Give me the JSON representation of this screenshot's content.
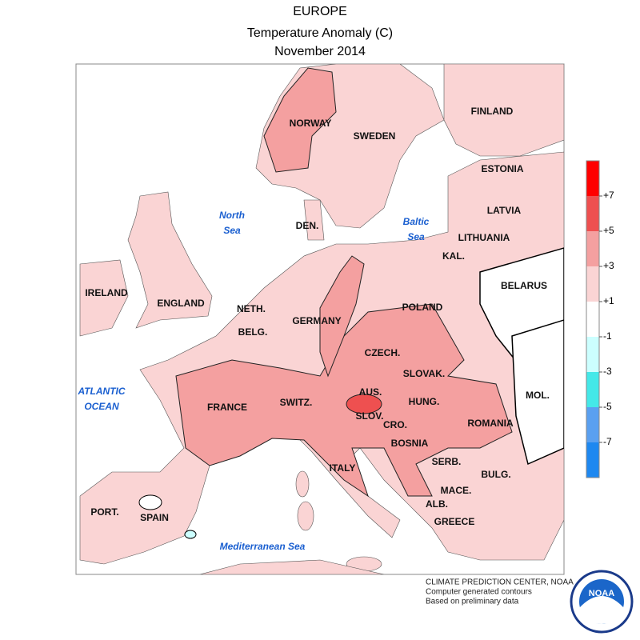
{
  "header": {
    "title": "EUROPE",
    "subtitle": "Temperature Anomaly (C)",
    "date": "November 2014"
  },
  "countries": [
    "NORWAY",
    "SWEDEN",
    "FINLAND",
    "ESTONIA",
    "LATVIA",
    "LITHUANIA",
    "KAL.",
    "DEN.",
    "BELARUS",
    "IRELAND",
    "ENGLAND",
    "NETH.",
    "POLAND",
    "GERMANY",
    "BELG.",
    "CZECH.",
    "SLOVAK.",
    "MOL.",
    "AUS.",
    "HUNG.",
    "FRANCE",
    "SWITZ.",
    "SLOV.",
    "CRO.",
    "ROMANIA",
    "BOSNIA",
    "SERB.",
    "BULG.",
    "ITALY",
    "MACE.",
    "ALB.",
    "PORT.",
    "SPAIN",
    "GREECE"
  ],
  "seas": [
    [
      "North",
      "Sea"
    ],
    [
      "Baltic",
      "Sea"
    ],
    [
      "ATLANTIC",
      "OCEAN"
    ],
    [
      "Mediterranean Sea"
    ]
  ],
  "colorbar": {
    "colors": [
      "#ff0000",
      "#ee5050",
      "#f4a0a0",
      "#fad4d4",
      "#ffffff",
      "#ccffff",
      "#44e8e8",
      "#5aa0f0",
      "#1e88f0"
    ],
    "ticks": [
      {
        "value": 7,
        "label": "+7"
      },
      {
        "value": 5,
        "label": "+5"
      },
      {
        "value": 3,
        "label": "+3"
      },
      {
        "value": 1,
        "label": "+1"
      },
      -1,
      -3,
      -5,
      -7
    ]
  },
  "footer": [
    "CLIMATE PREDICTION CENTER, NOAA",
    "Computer generated contours",
    "Based on preliminary data"
  ],
  "logo": "NOAA"
}
